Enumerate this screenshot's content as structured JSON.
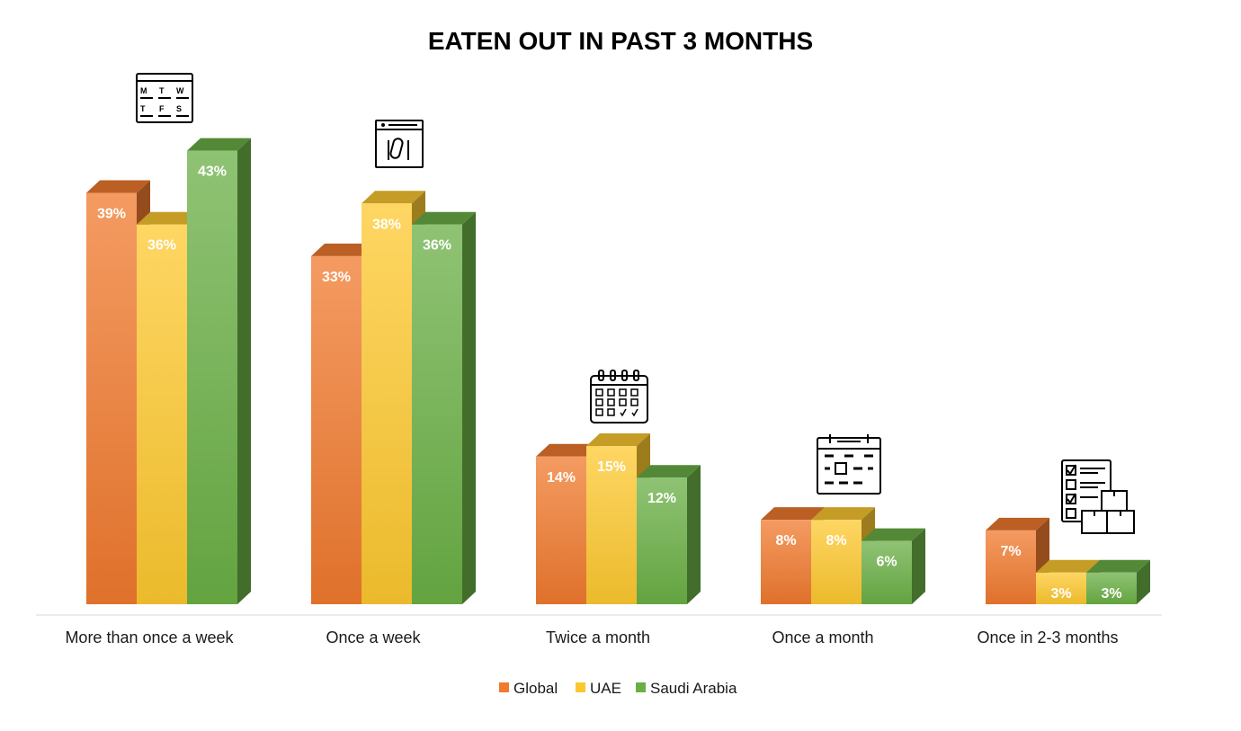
{
  "chart_data": {
    "type": "bar",
    "title": "EATEN OUT IN PAST 3 MONTHS",
    "xlabel": "",
    "ylabel": "",
    "categories": [
      "More than once a week",
      "Once a week",
      "Twice a month",
      "Once a month",
      "Once in 2-3 months"
    ],
    "series": [
      {
        "name": "Global",
        "values": [
          39,
          33,
          14,
          8,
          7
        ],
        "labels": [
          "39%",
          "33%",
          "14%",
          "8%",
          "7%"
        ],
        "color": "#F07A2E"
      },
      {
        "name": "UAE",
        "values": [
          36,
          38,
          15,
          8,
          3
        ],
        "labels": [
          "36%",
          "38%",
          "15%",
          "8%",
          "3%"
        ],
        "color": "#FDC82F"
      },
      {
        "name": "Saudi Arabia",
        "values": [
          43,
          36,
          12,
          6,
          3
        ],
        "labels": [
          "43%",
          "36%",
          "12%",
          "6%",
          "3%"
        ],
        "color": "#6AAF45"
      }
    ],
    "ylim": [
      0,
      45
    ],
    "grid": false,
    "legend_position": "bottom",
    "style": "3d-column"
  },
  "icons": [
    "weekly-calendar-icon",
    "schedule-icon",
    "monthly-calendar-icon",
    "calendar-icon",
    "checklist-boxes-icon"
  ]
}
